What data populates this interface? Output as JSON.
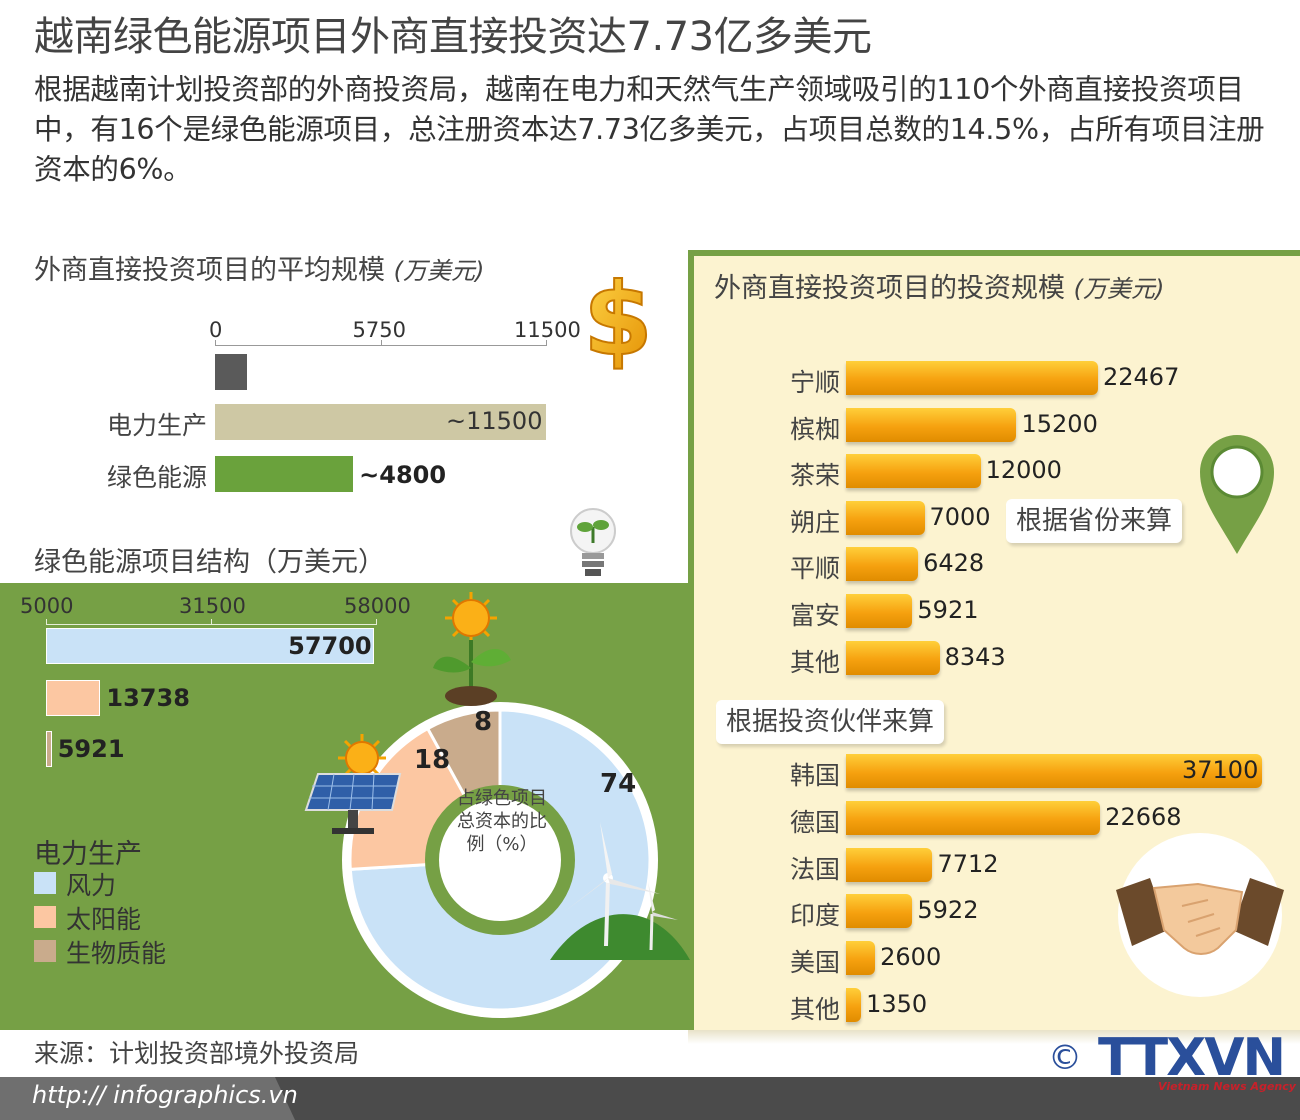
{
  "title": "越南绿色能源项目外商直接投资达7.73亿多美元",
  "intro": "根据越南计划投资部的外商投资局，越南在电力和天然气生产领域吸引的110个外商直接投资项目中，有16个是绿色能源项目，总注册资本达7.73亿多美元，占项目总数的14.5%，占所有项目注册资本的6%。",
  "colors": {
    "green": "#76a045",
    "grey_bar": "#5a5a5a",
    "beige_bar": "#cec8a4",
    "green_bar": "#6aa23c",
    "wind": "#c9e2f7",
    "solar": "#fcc7a2",
    "biomass": "#c9ab8c",
    "orange": "#f6a10f",
    "panel_bg": "#fcf3d0"
  },
  "avg_chart": {
    "title": "外商直接投资项目的平均规模",
    "unit": "(万美元)",
    "ticks": [
      "0",
      "5750",
      "11500"
    ]
  },
  "structure_chart": {
    "title": "绿色能源项目结构（万美元）",
    "ticks": [
      "5000",
      "31500",
      "58000"
    ],
    "legend_title": "电力生产",
    "legend": [
      "风力",
      "太阳能",
      "生物质能"
    ]
  },
  "donut": {
    "center_label": "占绿色项目总资本的比例（%）",
    "labels": [
      "74",
      "18",
      "8"
    ]
  },
  "province_chart": {
    "title": "外商直接投资项目的投资规模",
    "unit": "(万美元)",
    "tag": "根据省份来算"
  },
  "partner_chart": {
    "tag": "根据投资伙伴来算"
  },
  "chart_data": [
    {
      "type": "bar",
      "title": "外商直接投资项目的平均规模 (万美元)",
      "xlim": [
        0,
        11500
      ],
      "categories": [
        "",
        "电力生产",
        "绿色能源"
      ],
      "values": [
        1100,
        11500,
        4800
      ],
      "data_labels": [
        "",
        "~11500",
        "~4800"
      ]
    },
    {
      "type": "bar",
      "title": "绿色能源项目结构（万美元）",
      "xlim": [
        5000,
        58000
      ],
      "categories": [
        "风力",
        "太阳能",
        "生物质能"
      ],
      "values": [
        57700,
        13738,
        5921
      ],
      "data_labels": [
        "57700",
        "13738",
        "5921"
      ]
    },
    {
      "type": "pie",
      "title": "占绿色项目总资本的比例（%）",
      "categories": [
        "风力",
        "太阳能",
        "生物质能"
      ],
      "values": [
        74,
        18,
        8
      ]
    },
    {
      "type": "bar",
      "title": "根据省份来算",
      "categories": [
        "宁顺",
        "槟椥",
        "茶荣",
        "朔庄",
        "平顺",
        "富安",
        "其他"
      ],
      "values": [
        22467,
        15200,
        12000,
        7000,
        6428,
        5921,
        8343
      ],
      "data_labels": [
        "22467",
        "15200",
        "12000",
        "7000",
        "6428",
        "5921",
        "8343"
      ]
    },
    {
      "type": "bar",
      "title": "根据投资伙伴来算",
      "categories": [
        "韩国",
        "德国",
        "法国",
        "印度",
        "美国",
        "其他"
      ],
      "values": [
        37100,
        22668,
        7712,
        5922,
        2600,
        1350
      ],
      "data_labels": [
        "37100",
        "22668",
        "7712",
        "5922",
        "2600",
        "1350"
      ]
    }
  ],
  "source": "来源：计划投资部境外投资局",
  "url": "http:// infographics.vn",
  "logo": {
    "text": "TTXVN",
    "sub": "Vietnam News Agency",
    "copyright": "©"
  }
}
